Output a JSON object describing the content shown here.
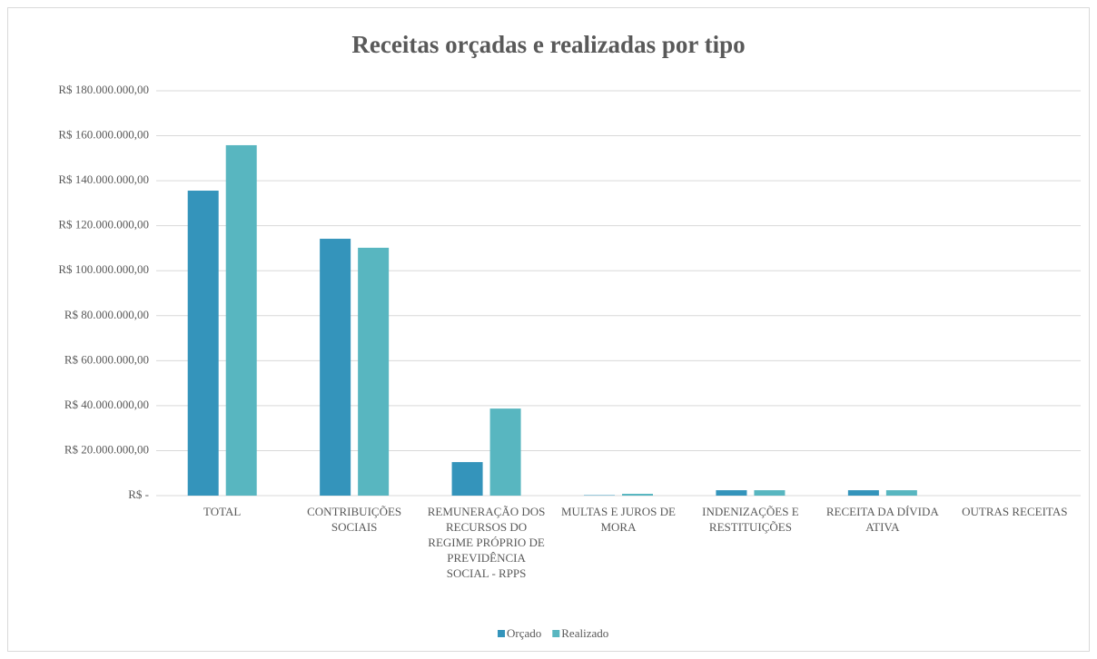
{
  "chart_data": {
    "type": "bar",
    "title": "Receitas orçadas e realizadas por tipo",
    "categories": [
      "TOTAL",
      "CONTRIBUIÇÕES SOCIAIS",
      "REMUNERAÇÃO DOS RECURSOS DO REGIME PRÓPRIO DE PREVIDÊNCIA SOCIAL - RPPS",
      "MULTAS E JUROS DE MORA",
      "INDENIZAÇÕES E RESTITUIÇÕES",
      "RECEITA DA DÍVIDA ATIVA",
      "OUTRAS RECEITAS"
    ],
    "series": [
      {
        "name": "Orçado",
        "color": "#3494bb",
        "values": [
          135600000,
          114200000,
          14900000,
          200000,
          2400000,
          2400000,
          0
        ]
      },
      {
        "name": "Realizado",
        "color": "#58b6c0",
        "values": [
          155800000,
          110200000,
          38700000,
          800000,
          2400000,
          2400000,
          0
        ]
      }
    ],
    "ylim": [
      0,
      180000000
    ],
    "yticks": [
      {
        "value": 0,
        "label": "R$ -"
      },
      {
        "value": 20000000,
        "label": "R$ 20.000.000,00"
      },
      {
        "value": 40000000,
        "label": "R$ 40.000.000,00"
      },
      {
        "value": 60000000,
        "label": "R$ 60.000.000,00"
      },
      {
        "value": 80000000,
        "label": "R$ 80.000.000,00"
      },
      {
        "value": 100000000,
        "label": "R$ 100.000.000,00"
      },
      {
        "value": 120000000,
        "label": "R$ 120.000.000,00"
      },
      {
        "value": 140000000,
        "label": "R$ 140.000.000,00"
      },
      {
        "value": 160000000,
        "label": "R$ 160.000.000,00"
      },
      {
        "value": 180000000,
        "label": "R$ 180.000.000,00"
      }
    ],
    "grid": true,
    "legend": "bottom"
  }
}
